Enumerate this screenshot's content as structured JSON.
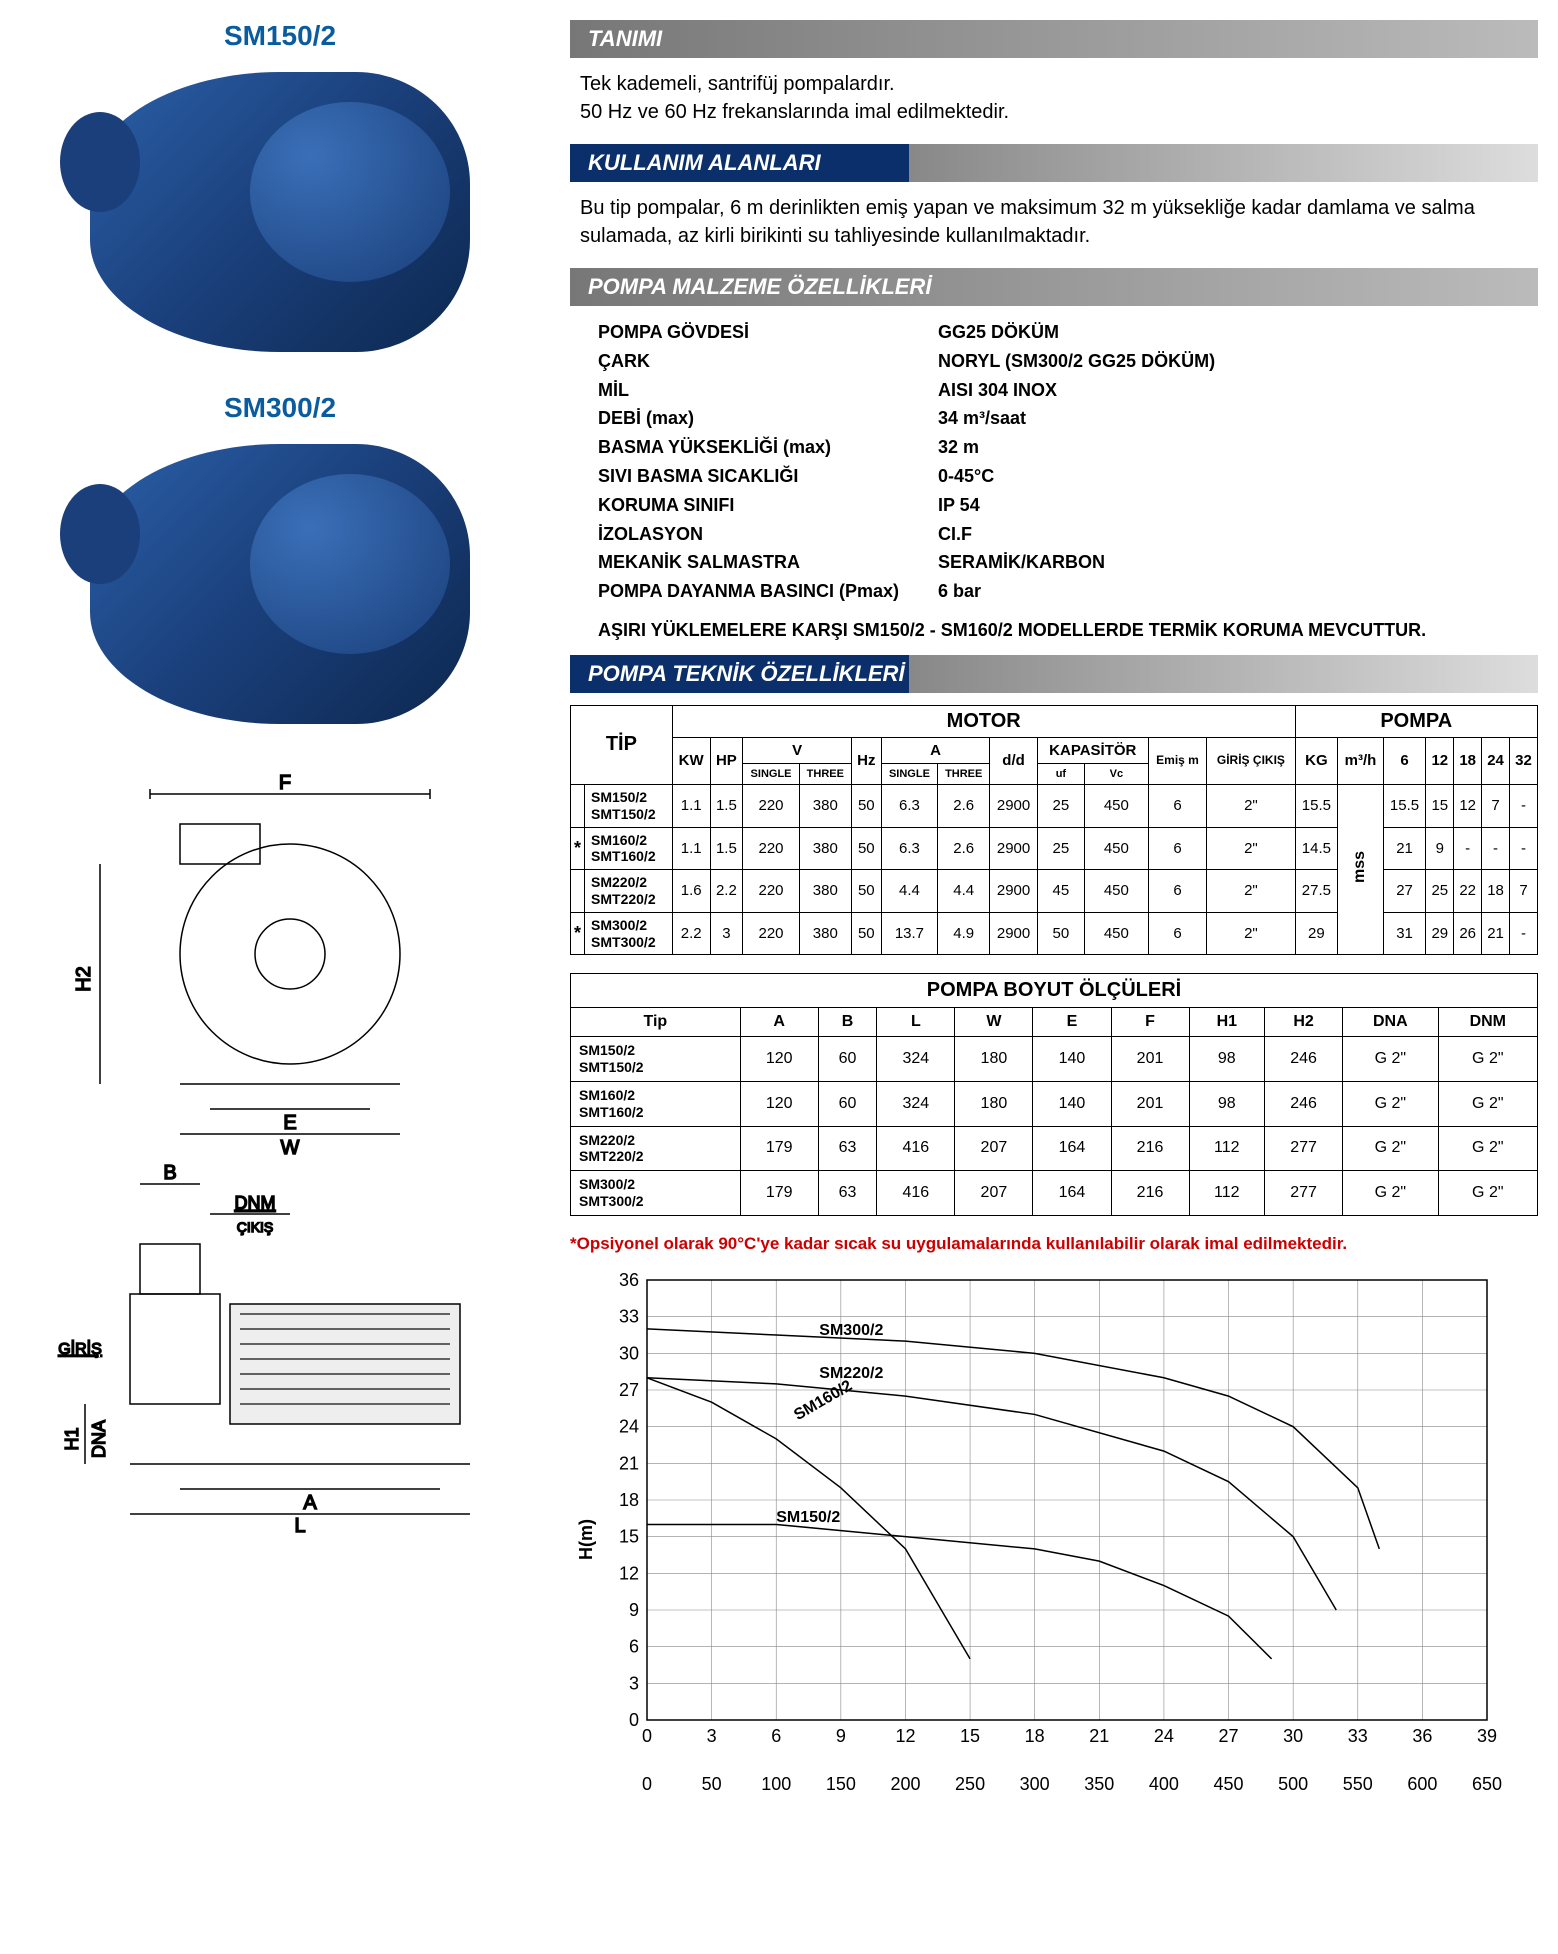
{
  "left": {
    "model1": "SM150/2",
    "model2": "SM300/2",
    "drawing_labels": {
      "f": "F",
      "h2": "H2",
      "e": "E",
      "w": "W",
      "b": "B",
      "dnm": "DNM",
      "cikis": "ÇIKIŞ",
      "giris": "GİRİŞ",
      "h1": "H1",
      "dna": "DNA",
      "a": "A",
      "l": "L"
    }
  },
  "sections": {
    "tanimi": {
      "title": "TANIMI",
      "lines": [
        "Tek kademeli, santrifüj pompalardır.",
        "50 Hz ve 60 Hz frekanslarında imal edilmektedir."
      ]
    },
    "kullanim": {
      "title": "KULLANIM ALANLARI",
      "text": "Bu tip pompalar, 6 m derinlikten emiş yapan ve maksimum 32 m yüksekliğe kadar damlama ve salma sulamada, az kirli birikinti su tahliyesinde kullanılmaktadır."
    },
    "malzeme": {
      "title": "POMPA MALZEME ÖZELLİKLERİ",
      "rows": [
        {
          "label": "POMPA GÖVDESİ",
          "value": "GG25 DÖKÜM"
        },
        {
          "label": "ÇARK",
          "value": "NORYL (SM300/2 GG25 DÖKÜM)"
        },
        {
          "label": "MİL",
          "value": "AISI 304 INOX"
        },
        {
          "label": "DEBİ (max)",
          "value": "34 m³/saat"
        },
        {
          "label": "BASMA YÜKSEKLİĞİ (max)",
          "value": "32 m"
        },
        {
          "label": "SIVI BASMA SICAKLIĞI",
          "value": "0-45°C"
        },
        {
          "label": "KORUMA SINIFI",
          "value": "IP 54"
        },
        {
          "label": "İZOLASYON",
          "value": "CI.F"
        },
        {
          "label": "MEKANİK SALMASTRA",
          "value": "SERAMİK/KARBON"
        },
        {
          "label": "POMPA DAYANMA BASINCI (Pmax)",
          "value": "6 bar"
        }
      ],
      "note": "AŞIRI YÜKLEMELERE KARŞI SM150/2 - SM160/2 MODELLERDE TERMİK KORUMA MEVCUTTUR."
    },
    "teknik": {
      "title": "POMPA TEKNİK ÖZELLİKLERİ"
    }
  },
  "tech_table": {
    "group_motor": "MOTOR",
    "group_pompa": "POMPA",
    "headers": {
      "tip": "TİP",
      "kw": "KW",
      "hp": "HP",
      "v": "V",
      "v_single": "SINGLE",
      "v_three": "THREE",
      "hz": "Hz",
      "a": "A",
      "a_single": "SINGLE",
      "a_three": "THREE",
      "dd": "d/d",
      "kap": "KAPASİTÖR",
      "kap_uf": "uf",
      "kap_vc": "Vc",
      "emis": "Emiş m",
      "giris": "GİRİŞ ÇIKIŞ",
      "kg": "KG",
      "m3h": "m³/h",
      "c6": "6",
      "c12": "12",
      "c18": "18",
      "c24": "24",
      "c32": "32",
      "mss": "mss"
    },
    "rows": [
      {
        "ast": "",
        "tip1": "SM150/2",
        "tip2": "SMT150/2",
        "kw": "1.1",
        "hp": "1.5",
        "vs": "220",
        "vt": "380",
        "hz": "50",
        "as": "6.3",
        "at": "2.6",
        "dd": "2900",
        "uf": "25",
        "vc": "450",
        "emis": "6",
        "gc": "2\"",
        "kg": "15.5",
        "v6": "15.5",
        "v12": "15",
        "v18": "12",
        "v24": "7",
        "v32": "-"
      },
      {
        "ast": "*",
        "tip1": "SM160/2",
        "tip2": "SMT160/2",
        "kw": "1.1",
        "hp": "1.5",
        "vs": "220",
        "vt": "380",
        "hz": "50",
        "as": "6.3",
        "at": "2.6",
        "dd": "2900",
        "uf": "25",
        "vc": "450",
        "emis": "6",
        "gc": "2\"",
        "kg": "14.5",
        "v6": "21",
        "v12": "9",
        "v18": "-",
        "v24": "-",
        "v32": "-"
      },
      {
        "ast": "",
        "tip1": "SM220/2",
        "tip2": "SMT220/2",
        "kw": "1.6",
        "hp": "2.2",
        "vs": "220",
        "vt": "380",
        "hz": "50",
        "as": "4.4",
        "at": "4.4",
        "dd": "2900",
        "uf": "45",
        "vc": "450",
        "emis": "6",
        "gc": "2\"",
        "kg": "27.5",
        "v6": "27",
        "v12": "25",
        "v18": "22",
        "v24": "18",
        "v32": "7"
      },
      {
        "ast": "*",
        "tip1": "SM300/2",
        "tip2": "SMT300/2",
        "kw": "2.2",
        "hp": "3",
        "vs": "220",
        "vt": "380",
        "hz": "50",
        "as": "13.7",
        "at": "4.9",
        "dd": "2900",
        "uf": "50",
        "vc": "450",
        "emis": "6",
        "gc": "2\"",
        "kg": "29",
        "v6": "31",
        "v12": "29",
        "v18": "26",
        "v24": "21",
        "v32": "-"
      }
    ]
  },
  "dims_table": {
    "title": "POMPA BOYUT ÖLÇÜLERİ",
    "headers": [
      "Tip",
      "A",
      "B",
      "L",
      "W",
      "E",
      "F",
      "H1",
      "H2",
      "DNA",
      "DNM"
    ],
    "rows": [
      {
        "tip1": "SM150/2",
        "tip2": "SMT150/2",
        "a": "120",
        "b": "60",
        "l": "324",
        "w": "180",
        "e": "140",
        "f": "201",
        "h1": "98",
        "h2": "246",
        "dna": "G 2\"",
        "dnm": "G 2\""
      },
      {
        "tip1": "SM160/2",
        "tip2": "SMT160/2",
        "a": "120",
        "b": "60",
        "l": "324",
        "w": "180",
        "e": "140",
        "f": "201",
        "h1": "98",
        "h2": "246",
        "dna": "G 2\"",
        "dnm": "G 2\""
      },
      {
        "tip1": "SM220/2",
        "tip2": "SMT220/2",
        "a": "179",
        "b": "63",
        "l": "416",
        "w": "207",
        "e": "164",
        "f": "216",
        "h1": "112",
        "h2": "277",
        "dna": "G 2\"",
        "dnm": "G 2\""
      },
      {
        "tip1": "SM300/2",
        "tip2": "SMT300/2",
        "a": "179",
        "b": "63",
        "l": "416",
        "w": "207",
        "e": "164",
        "f": "216",
        "h1": "112",
        "h2": "277",
        "dna": "G 2\"",
        "dnm": "G 2\""
      }
    ]
  },
  "red_note_prefix": "*",
  "red_note": "Opsiyonel olarak 90°C'ye kadar sıcak su uygulamalarında kullanılabilir olarak imal edilmektedir.",
  "chart": {
    "type": "line",
    "ylabel": "H(m)",
    "xlim": [
      0,
      39
    ],
    "ylim": [
      0,
      36
    ],
    "xticks": [
      0,
      3,
      6,
      9,
      12,
      15,
      18,
      21,
      24,
      27,
      30,
      33,
      36,
      39
    ],
    "yticks": [
      0,
      3,
      6,
      9,
      12,
      15,
      18,
      21,
      24,
      27,
      30,
      33,
      36
    ],
    "x2ticks": [
      0,
      50,
      100,
      150,
      200,
      250,
      300,
      350,
      400,
      450,
      500,
      550,
      600,
      650
    ],
    "grid_color": "#888",
    "line_color": "#000",
    "background_color": "#ffffff",
    "font_size": 18,
    "line_width": 1.5,
    "series": [
      {
        "label": "SM300/2",
        "label_x": 8,
        "label_y": 31.5,
        "points": [
          [
            0,
            32
          ],
          [
            6,
            31.5
          ],
          [
            12,
            31
          ],
          [
            18,
            30
          ],
          [
            24,
            28
          ],
          [
            27,
            26.5
          ],
          [
            30,
            24
          ],
          [
            33,
            19
          ],
          [
            34,
            14
          ]
        ]
      },
      {
        "label": "SM220/2",
        "label_x": 8,
        "label_y": 28,
        "points": [
          [
            0,
            28
          ],
          [
            6,
            27.5
          ],
          [
            12,
            26.5
          ],
          [
            18,
            25
          ],
          [
            24,
            22
          ],
          [
            27,
            19.5
          ],
          [
            30,
            15
          ],
          [
            32,
            9
          ]
        ]
      },
      {
        "label": "SM160/2",
        "label_x": 7,
        "label_y": 24.5,
        "label_rot": -30,
        "points": [
          [
            0,
            28
          ],
          [
            3,
            26
          ],
          [
            6,
            23
          ],
          [
            9,
            19
          ],
          [
            12,
            14
          ],
          [
            14,
            8
          ],
          [
            15,
            5
          ]
        ]
      },
      {
        "label": "SM150/2",
        "label_x": 6,
        "label_y": 16.2,
        "points": [
          [
            0,
            16
          ],
          [
            6,
            16
          ],
          [
            12,
            15
          ],
          [
            18,
            14
          ],
          [
            21,
            13
          ],
          [
            24,
            11
          ],
          [
            27,
            8.5
          ],
          [
            29,
            5
          ]
        ]
      }
    ]
  }
}
